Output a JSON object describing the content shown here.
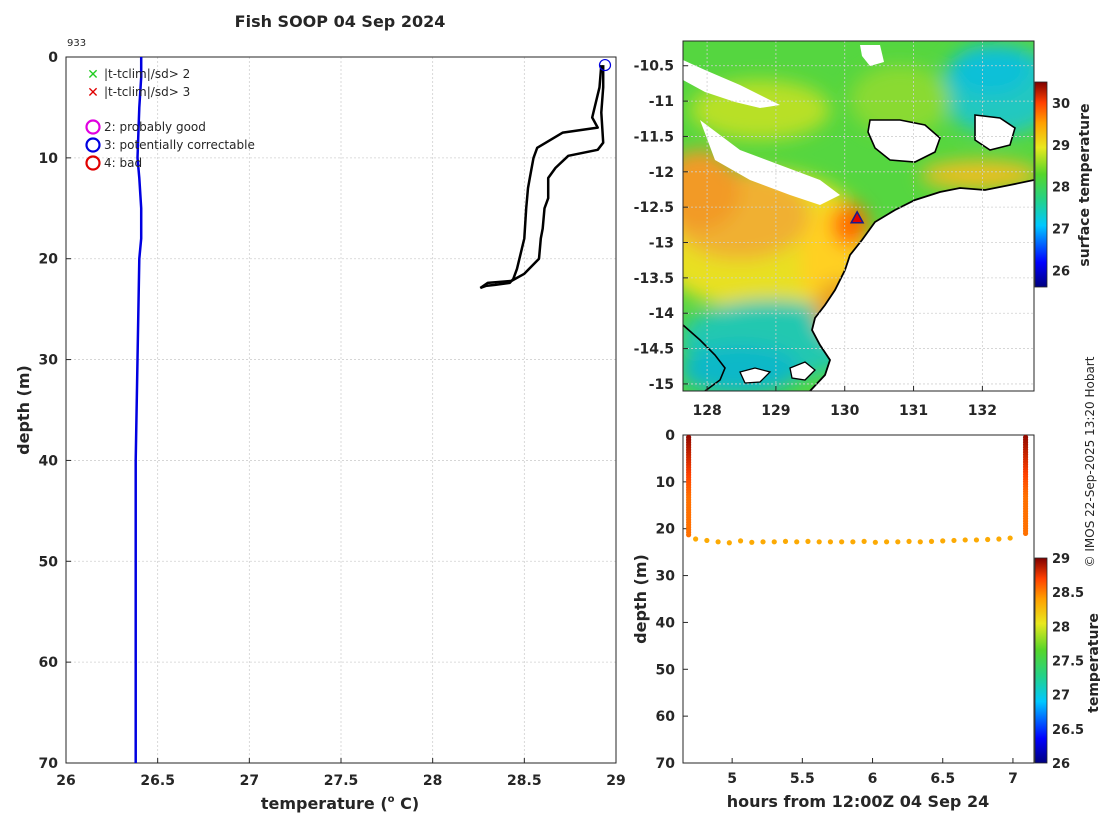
{
  "figure_title": "Fish SOOP 04 Sep 2024",
  "credit": "© IMOS 22-Sep-2025 13:20 Hobart",
  "colors": {
    "profile_line": "#0000e0",
    "track_line": "#000000",
    "legend_x2": "#22cc22",
    "legend_x3": "#e00000",
    "legend_o2": "#e000e0",
    "legend_o3": "#0000e0",
    "legend_o4": "#e00000"
  },
  "chart_data": [
    {
      "id": "profile",
      "type": "line",
      "title": "Fish SOOP 04 Sep 2024",
      "annotation": "933",
      "xlabel": "temperature (° C)",
      "xlabel_main": "temperature (",
      "xlabel_sup": "o",
      "xlabel_end": " C)",
      "ylabel": "depth (m)",
      "xlim": [
        26,
        29
      ],
      "ylim": [
        0,
        70
      ],
      "y_reversed": true,
      "grid": true,
      "xticks": [
        "26",
        "26.5",
        "27",
        "27.5",
        "28",
        "28.5",
        "29"
      ],
      "yticks": [
        "0",
        "10",
        "20",
        "30",
        "40",
        "50",
        "60",
        "70"
      ],
      "legend": [
        {
          "marker": "x",
          "label": "|t-tclim|/sd> 2"
        },
        {
          "marker": "x",
          "label": "|t-tclim|/sd> 3"
        },
        {
          "marker": "o",
          "label": "2: probably good"
        },
        {
          "marker": "o",
          "label": "3: potentially correctable"
        },
        {
          "marker": "o",
          "label": "4: bad"
        }
      ],
      "series": [
        {
          "name": "climatology",
          "x": [
            26.41,
            26.41,
            26.4,
            26.39,
            26.4,
            26.41,
            26.41,
            26.4,
            26.39,
            26.38,
            26.38,
            26.38,
            26.38
          ],
          "y": [
            0,
            2,
            5,
            10,
            12,
            15,
            18,
            20,
            30,
            40,
            50,
            60,
            70
          ]
        },
        {
          "name": "profile_band_outer",
          "x": [
            28.93,
            28.93,
            28.92,
            28.93,
            28.9,
            28.74,
            28.67,
            28.63,
            28.63,
            28.61,
            28.6,
            28.59,
            28.58,
            28.5,
            28.43,
            28.3,
            28.26
          ],
          "y": [
            0.8,
            3,
            5.5,
            8.5,
            9.2,
            9.8,
            11,
            12,
            14,
            15,
            17,
            18,
            20,
            21.5,
            22.2,
            22.4,
            22.9
          ]
        },
        {
          "name": "profile_band_inner",
          "x": [
            28.92,
            28.91,
            28.87,
            28.9,
            28.71,
            28.57,
            28.55,
            28.53,
            28.52,
            28.51,
            28.5,
            28.46,
            28.44,
            28.42,
            28.34,
            28.29,
            28.26
          ],
          "y": [
            0.8,
            3,
            6,
            7,
            7.5,
            9,
            10,
            12,
            13,
            15,
            18,
            21,
            22,
            22.4,
            22.6,
            22.7,
            22.9
          ]
        },
        {
          "name": "flag",
          "x": [
            28.94
          ],
          "y": [
            0.8
          ]
        }
      ]
    },
    {
      "id": "map",
      "type": "heatmap",
      "title": "",
      "colorbar_label": "surface temperature",
      "xlim": [
        127.65,
        132.75
      ],
      "ylim": [
        -15.1,
        -10.15
      ],
      "xticks": [
        "128",
        "129",
        "130",
        "131",
        "132"
      ],
      "yticks": [
        "-10.5",
        "-11",
        "-11.5",
        "-12",
        "-12.5",
        "-13",
        "-13.5",
        "-14",
        "-14.5",
        "-15"
      ],
      "colorbar_range": [
        25.6,
        30.5
      ],
      "colorbar_ticks": [
        "26",
        "27",
        "28",
        "29",
        "30"
      ],
      "marker": {
        "lon": 130.18,
        "lat": -12.65
      }
    },
    {
      "id": "section",
      "type": "scatter",
      "xlabel": "hours from 12:00Z 04 Sep 24",
      "ylabel": "depth (m)",
      "xlim": [
        4.65,
        7.15
      ],
      "ylim": [
        0,
        70
      ],
      "y_reversed": true,
      "xticks": [
        "5",
        "5.5",
        "6",
        "6.5",
        "7"
      ],
      "yticks": [
        "0",
        "10",
        "20",
        "30",
        "40",
        "50",
        "60",
        "70"
      ],
      "colorbar_label": "temperature",
      "colorbar_range": [
        26,
        29
      ],
      "colorbar_ticks": [
        "26",
        "26.5",
        "27",
        "27.5",
        "28",
        "28.5",
        "29"
      ],
      "down_cast": {
        "x": 4.69,
        "depth_start": 0.5,
        "depth_end": 21.3,
        "t_top": 28.95,
        "t_bottom": 28.55
      },
      "bottom_track": {
        "x": [
          4.74,
          4.82,
          4.9,
          4.98,
          5.06,
          5.14,
          5.22,
          5.3,
          5.38,
          5.46,
          5.54,
          5.62,
          5.7,
          5.78,
          5.86,
          5.94,
          6.02,
          6.1,
          6.18,
          6.26,
          6.34,
          6.42,
          6.5,
          6.58,
          6.66,
          6.74,
          6.82,
          6.9,
          6.98
        ],
        "depth": [
          22.2,
          22.5,
          22.8,
          23.0,
          22.6,
          22.9,
          22.8,
          22.8,
          22.7,
          22.8,
          22.7,
          22.8,
          22.8,
          22.8,
          22.8,
          22.7,
          22.9,
          22.8,
          22.8,
          22.7,
          22.8,
          22.7,
          22.6,
          22.5,
          22.4,
          22.4,
          22.3,
          22.2,
          22.0
        ],
        "t": 28.35
      },
      "up_cast": {
        "x": 7.09,
        "depth_start": 0.5,
        "depth_end": 21.0,
        "t_top": 28.95,
        "t_bottom": 28.55
      }
    }
  ]
}
